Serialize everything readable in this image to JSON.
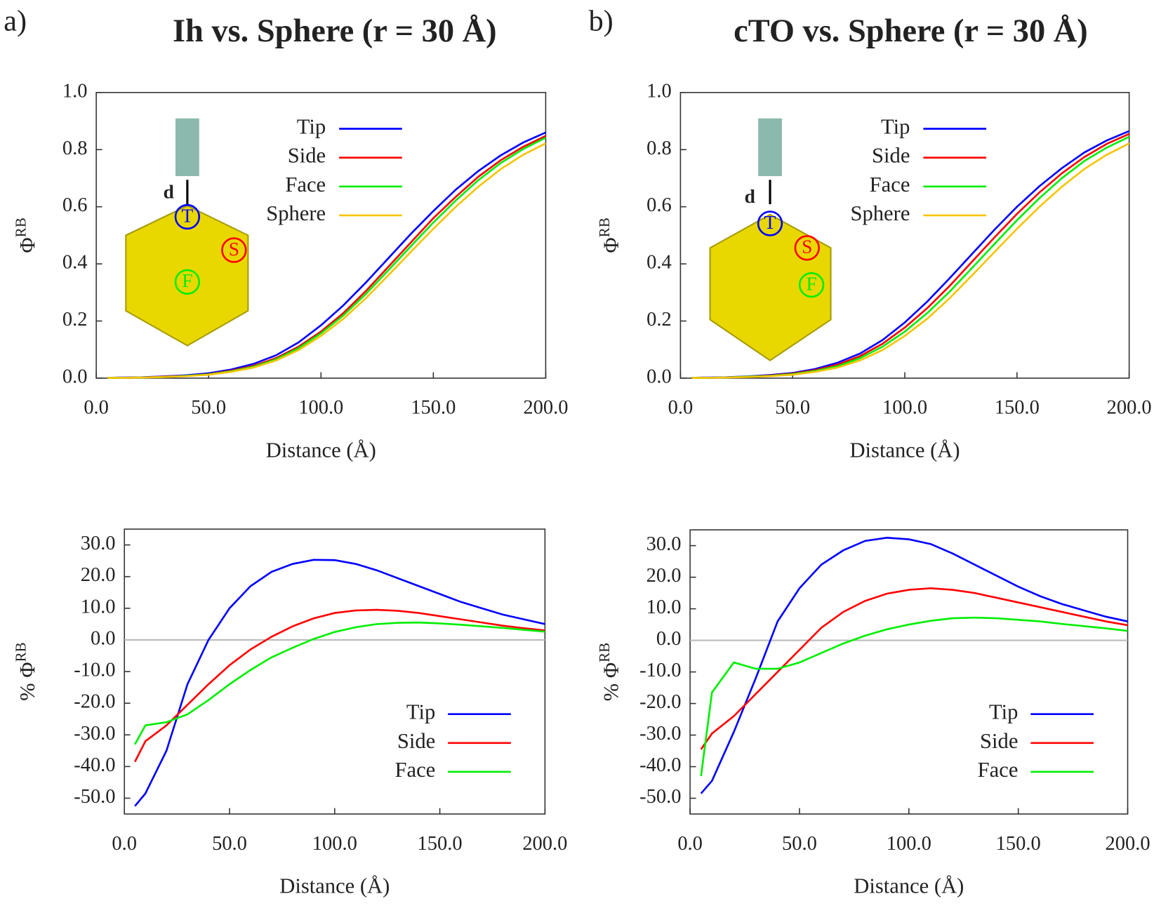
{
  "chart_data": [
    {
      "type": "line",
      "panel_label": "a)",
      "title": "Ih vs. Sphere (r = 30 Å)",
      "xlabel": "Distance (Å)",
      "ylabel": "Φ",
      "ylabel_sup": "RB",
      "inset_labels": [
        "T",
        "S",
        "F",
        "d"
      ],
      "legend": "upper center",
      "x": [
        5,
        10,
        20,
        30,
        40,
        50,
        60,
        70,
        80,
        90,
        100,
        110,
        120,
        130,
        140,
        150,
        160,
        170,
        180,
        190,
        200
      ],
      "series": [
        {
          "name": "Tip",
          "color": "#0000ff",
          "values": [
            0.001,
            0.002,
            0.003,
            0.006,
            0.01,
            0.017,
            0.03,
            0.05,
            0.08,
            0.125,
            0.185,
            0.255,
            0.335,
            0.42,
            0.505,
            0.585,
            0.66,
            0.725,
            0.78,
            0.825,
            0.86
          ]
        },
        {
          "name": "Side",
          "color": "#ff0000",
          "values": [
            0.001,
            0.001,
            0.002,
            0.005,
            0.008,
            0.014,
            0.026,
            0.043,
            0.07,
            0.11,
            0.163,
            0.228,
            0.305,
            0.39,
            0.475,
            0.56,
            0.635,
            0.705,
            0.763,
            0.81,
            0.848
          ]
        },
        {
          "name": "Face",
          "color": "#00ee00",
          "values": [
            0.001,
            0.001,
            0.002,
            0.004,
            0.008,
            0.013,
            0.024,
            0.04,
            0.066,
            0.105,
            0.157,
            0.22,
            0.295,
            0.378,
            0.462,
            0.545,
            0.622,
            0.693,
            0.753,
            0.802,
            0.842
          ]
        },
        {
          "name": "Sphere",
          "color": "#f5c400",
          "values": [
            0.001,
            0.001,
            0.002,
            0.004,
            0.007,
            0.012,
            0.022,
            0.037,
            0.062,
            0.098,
            0.148,
            0.208,
            0.28,
            0.36,
            0.442,
            0.523,
            0.6,
            0.67,
            0.732,
            0.782,
            0.822
          ]
        }
      ],
      "xlim": [
        0,
        200
      ],
      "ylim": [
        0,
        1
      ],
      "xticks": [
        {
          "value": 0,
          "label": "0.0"
        },
        {
          "value": 50,
          "label": "50.0"
        },
        {
          "value": 100,
          "label": "100.0"
        },
        {
          "value": 150,
          "label": "150.0"
        },
        {
          "value": 200,
          "label": "200.0"
        }
      ],
      "yticks": [
        {
          "value": 0,
          "label": "0.0"
        },
        0.2,
        0.4,
        0.6,
        0.8,
        {
          "value": 1,
          "label": "1.0"
        }
      ]
    },
    {
      "type": "line",
      "panel_label": "b)",
      "title": "cTO vs. Sphere (r = 30 Å)",
      "xlabel": "Distance (Å)",
      "ylabel": "Φ",
      "ylabel_sup": "RB",
      "inset_labels": [
        "T",
        "S",
        "F",
        "d"
      ],
      "legend": "upper center",
      "x": [
        5,
        10,
        20,
        30,
        40,
        50,
        60,
        70,
        80,
        90,
        100,
        110,
        120,
        130,
        140,
        150,
        160,
        170,
        180,
        190,
        200
      ],
      "series": [
        {
          "name": "Tip",
          "color": "#0000ff",
          "values": [
            0.001,
            0.002,
            0.003,
            0.006,
            0.011,
            0.018,
            0.032,
            0.054,
            0.086,
            0.133,
            0.195,
            0.268,
            0.35,
            0.435,
            0.52,
            0.6,
            0.672,
            0.735,
            0.79,
            0.832,
            0.865
          ]
        },
        {
          "name": "Side",
          "color": "#ff0000",
          "values": [
            0.001,
            0.001,
            0.002,
            0.005,
            0.009,
            0.016,
            0.028,
            0.047,
            0.077,
            0.12,
            0.177,
            0.245,
            0.323,
            0.408,
            0.493,
            0.575,
            0.65,
            0.717,
            0.774,
            0.82,
            0.855
          ]
        },
        {
          "name": "Face",
          "color": "#00ee00",
          "values": [
            0.001,
            0.001,
            0.002,
            0.005,
            0.008,
            0.014,
            0.025,
            0.042,
            0.07,
            0.11,
            0.163,
            0.228,
            0.303,
            0.386,
            0.47,
            0.553,
            0.63,
            0.7,
            0.76,
            0.807,
            0.845
          ]
        },
        {
          "name": "Sphere",
          "color": "#f5c400",
          "values": [
            0.001,
            0.001,
            0.002,
            0.004,
            0.007,
            0.012,
            0.022,
            0.037,
            0.062,
            0.098,
            0.148,
            0.208,
            0.28,
            0.36,
            0.442,
            0.523,
            0.6,
            0.67,
            0.732,
            0.782,
            0.822
          ]
        }
      ],
      "xlim": [
        0,
        200
      ],
      "ylim": [
        0,
        1
      ],
      "xticks": [
        {
          "value": 0,
          "label": "0.0"
        },
        {
          "value": 50,
          "label": "50.0"
        },
        {
          "value": 100,
          "label": "100.0"
        },
        {
          "value": 150,
          "label": "150.0"
        },
        {
          "value": 200,
          "label": "200.0"
        }
      ],
      "yticks": [
        {
          "value": 0,
          "label": "0.0"
        },
        0.2,
        0.4,
        0.6,
        0.8,
        {
          "value": 1,
          "label": "1.0"
        }
      ]
    },
    {
      "type": "line",
      "xlabel": "Distance (Å)",
      "ylabel": "% Φ",
      "ylabel_sup": "RB",
      "legend": "lower right",
      "zero_line": true,
      "x": [
        5,
        10,
        20,
        30,
        40,
        50,
        60,
        70,
        80,
        90,
        100,
        110,
        120,
        130,
        140,
        150,
        160,
        170,
        180,
        190,
        200
      ],
      "series": [
        {
          "name": "Tip",
          "color": "#0000ff",
          "values": [
            -52.5,
            -48.5,
            -35,
            -14,
            0,
            10,
            17,
            21.5,
            24,
            25.3,
            25.2,
            24,
            22,
            19.5,
            17,
            14.5,
            12,
            10,
            8,
            6.5,
            5
          ]
        },
        {
          "name": "Side",
          "color": "#ff0000",
          "values": [
            -38.5,
            -32,
            -27,
            -20.5,
            -14,
            -8,
            -3,
            1,
            4.3,
            6.8,
            8.5,
            9.3,
            9.5,
            9.2,
            8.5,
            7.5,
            6.5,
            5.5,
            4.5,
            3.7,
            3
          ]
        },
        {
          "name": "Face",
          "color": "#00ee00",
          "values": [
            -33,
            -27,
            -26,
            -23.5,
            -19,
            -14,
            -9.5,
            -5.5,
            -2.5,
            0.3,
            2.5,
            4,
            5,
            5.4,
            5.5,
            5.2,
            4.8,
            4.3,
            3.8,
            3.2,
            2.6
          ]
        }
      ],
      "xlim": [
        0,
        200
      ],
      "ylim": [
        -55,
        35
      ],
      "xticks": [
        {
          "value": 0,
          "label": "0.0"
        },
        {
          "value": 50,
          "label": "50.0"
        },
        {
          "value": 100,
          "label": "100.0"
        },
        {
          "value": 150,
          "label": "150.0"
        },
        {
          "value": 200,
          "label": "200.0"
        }
      ],
      "yticks": [
        {
          "value": -50,
          "label": "-50.0"
        },
        {
          "value": -40,
          "label": "-40.0"
        },
        {
          "value": -30,
          "label": "-30.0"
        },
        {
          "value": -20,
          "label": "-20.0"
        },
        {
          "value": -10,
          "label": "-10.0"
        },
        {
          "value": 0,
          "label": "0.0"
        },
        {
          "value": 10,
          "label": "10.0"
        },
        {
          "value": 20,
          "label": "20.0"
        },
        {
          "value": 30,
          "label": "30.0"
        }
      ]
    },
    {
      "type": "line",
      "xlabel": "Distance (Å)",
      "ylabel": "% Φ",
      "ylabel_sup": "RB",
      "legend": "lower right",
      "zero_line": true,
      "x": [
        5,
        10,
        20,
        30,
        40,
        50,
        60,
        70,
        80,
        90,
        100,
        110,
        120,
        130,
        140,
        150,
        160,
        170,
        180,
        190,
        200
      ],
      "series": [
        {
          "name": "Tip",
          "color": "#0000ff",
          "values": [
            -48.5,
            -44.5,
            -29,
            -12,
            6,
            16.5,
            24,
            28.5,
            31.5,
            32.5,
            32,
            30.5,
            27.5,
            24,
            20.5,
            17,
            14,
            11.5,
            9.5,
            7.5,
            6
          ]
        },
        {
          "name": "Side",
          "color": "#ff0000",
          "values": [
            -34.5,
            -29.5,
            -24,
            -17,
            -10,
            -3,
            4,
            9,
            12.5,
            14.8,
            16,
            16.5,
            16,
            15,
            13.5,
            12,
            10.5,
            9,
            7.5,
            6,
            4.8
          ]
        },
        {
          "name": "Face",
          "color": "#00ee00",
          "values": [
            -43,
            -16.5,
            -7,
            -9,
            -9,
            -7,
            -4,
            -1,
            1.5,
            3.5,
            5,
            6.2,
            7,
            7.2,
            7,
            6.5,
            6,
            5.2,
            4.5,
            3.8,
            3
          ]
        }
      ],
      "xlim": [
        0,
        200
      ],
      "ylim": [
        -55,
        35
      ],
      "xticks": [
        {
          "value": 0,
          "label": "0.0"
        },
        {
          "value": 50,
          "label": "50.0"
        },
        {
          "value": 100,
          "label": "100.0"
        },
        {
          "value": 150,
          "label": "150.0"
        },
        {
          "value": 200,
          "label": "200.0"
        }
      ],
      "yticks": [
        {
          "value": -50,
          "label": "-50.0"
        },
        {
          "value": -40,
          "label": "-40.0"
        },
        {
          "value": -30,
          "label": "-30.0"
        },
        {
          "value": -20,
          "label": "-20.0"
        },
        {
          "value": -10,
          "label": "-10.0"
        },
        {
          "value": 0,
          "label": "0.0"
        },
        {
          "value": 10,
          "label": "10.0"
        },
        {
          "value": 20,
          "label": "20.0"
        },
        {
          "value": 30,
          "label": "30.0"
        }
      ]
    }
  ]
}
